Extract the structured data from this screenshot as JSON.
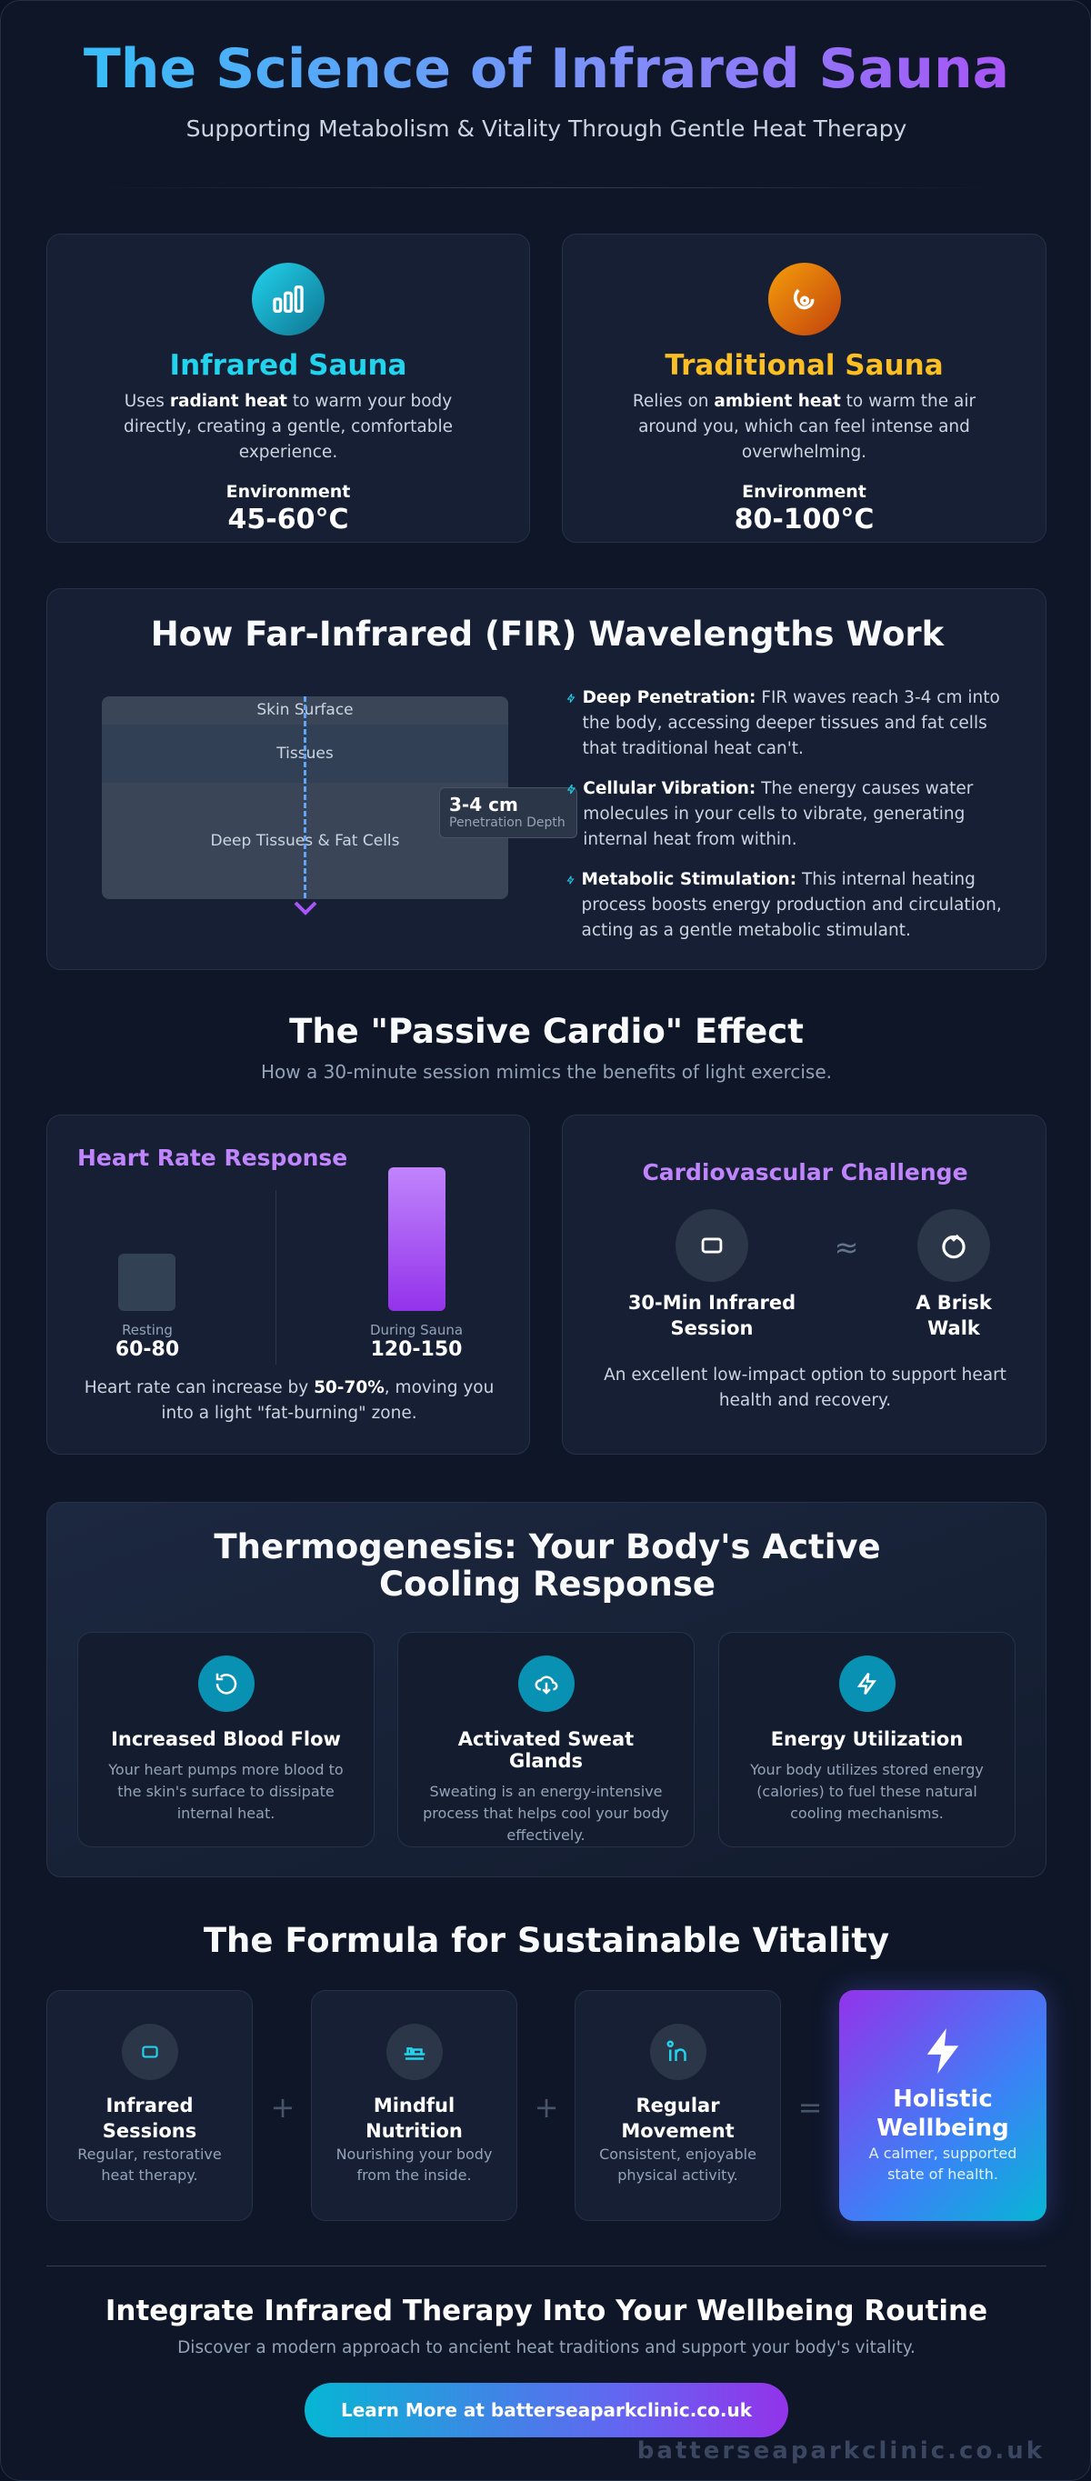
{
  "header": {
    "title": "The Science of Infrared Sauna",
    "subtitle": "Supporting Metabolism & Vitality Through Gentle Heat Therapy"
  },
  "comparison": [
    {
      "title": "Infrared Sauna",
      "desc": [
        "Uses ",
        "radiant heat",
        " to warm your body directly, creating a gentle, comfortable experience."
      ],
      "env_label": "Environment",
      "env_value": "45-60°C"
    },
    {
      "title": "Traditional Sauna",
      "desc": [
        "Relies on ",
        "ambient heat",
        " to warm the air around you, which can feel intense and overwhelming."
      ],
      "env_label": "Environment",
      "env_value": "80-100°C"
    }
  ],
  "fir": {
    "title": "How Far-Infrared (FIR) Wavelengths Work",
    "layers": [
      "Skin Surface",
      "Tissues",
      "Deep Tissues & Fat Cells"
    ],
    "depth_value": "3-4 cm",
    "depth_label": "Penetration Depth",
    "points": [
      {
        "bold": "Deep Penetration:",
        "text": " FIR waves reach 3-4 cm into the body, accessing deeper tissues and fat cells that traditional heat can't."
      },
      {
        "bold": "Cellular Vibration:",
        "text": " The energy causes water molecules in your cells to vibrate, generating internal heat from within."
      },
      {
        "bold": "Metabolic Stimulation:",
        "text": " This internal heating process boosts energy production and circulation, acting as a gentle metabolic stimulant."
      }
    ]
  },
  "cardio": {
    "title": "The \"Passive Cardio\" Effect",
    "subtitle": "How a 30-minute session mimics the benefits of light exercise.",
    "heart": {
      "title": "Heart Rate Response",
      "resting_label": "Resting",
      "resting_value": "60-80",
      "sauna_label": "During Sauna",
      "sauna_value": "120-150",
      "note": [
        "Heart rate can increase by ",
        "50-70%",
        ", moving you into a light \"fat-burning\" zone."
      ]
    },
    "challenge": {
      "title": "Cardiovascular Challenge",
      "left": "30-Min Infrared Session",
      "approx": "≈",
      "right": "A Brisk Walk",
      "note": "An excellent low-impact option to support heart health and recovery."
    }
  },
  "thermo": {
    "title": "Thermogenesis: Your Body's Active Cooling Response",
    "items": [
      {
        "title": "Increased Blood Flow",
        "text": "Your heart pumps more blood to the skin's surface to dissipate internal heat."
      },
      {
        "title": "Activated Sweat Glands",
        "text": "Sweating is an energy-intensive process that helps cool your body effectively."
      },
      {
        "title": "Energy Utilization",
        "text": "Your body utilizes stored energy (calories) to fuel these natural cooling mechanisms."
      }
    ]
  },
  "formula": {
    "title": "The Formula for Sustainable Vitality",
    "items": [
      {
        "title": "Infrared Sessions",
        "text": "Regular, restorative heat therapy."
      },
      {
        "title": "Mindful Nutrition",
        "text": "Nourishing your body from the inside."
      },
      {
        "title": "Regular Movement",
        "text": "Consistent, enjoyable physical activity."
      }
    ],
    "plus": "+",
    "equals": "=",
    "result": {
      "title": "Holistic Wellbeing",
      "text": "A calmer, supported state of health."
    }
  },
  "cta": {
    "title": "Integrate Infrared Therapy Into Your Wellbeing Routine",
    "subtitle": "Discover a modern approach to ancient heat traditions and support your body's vitality.",
    "button": "Learn More at batterseaparkclinic.co.uk"
  },
  "watermark": "batterseaparkclinic.co.uk"
}
